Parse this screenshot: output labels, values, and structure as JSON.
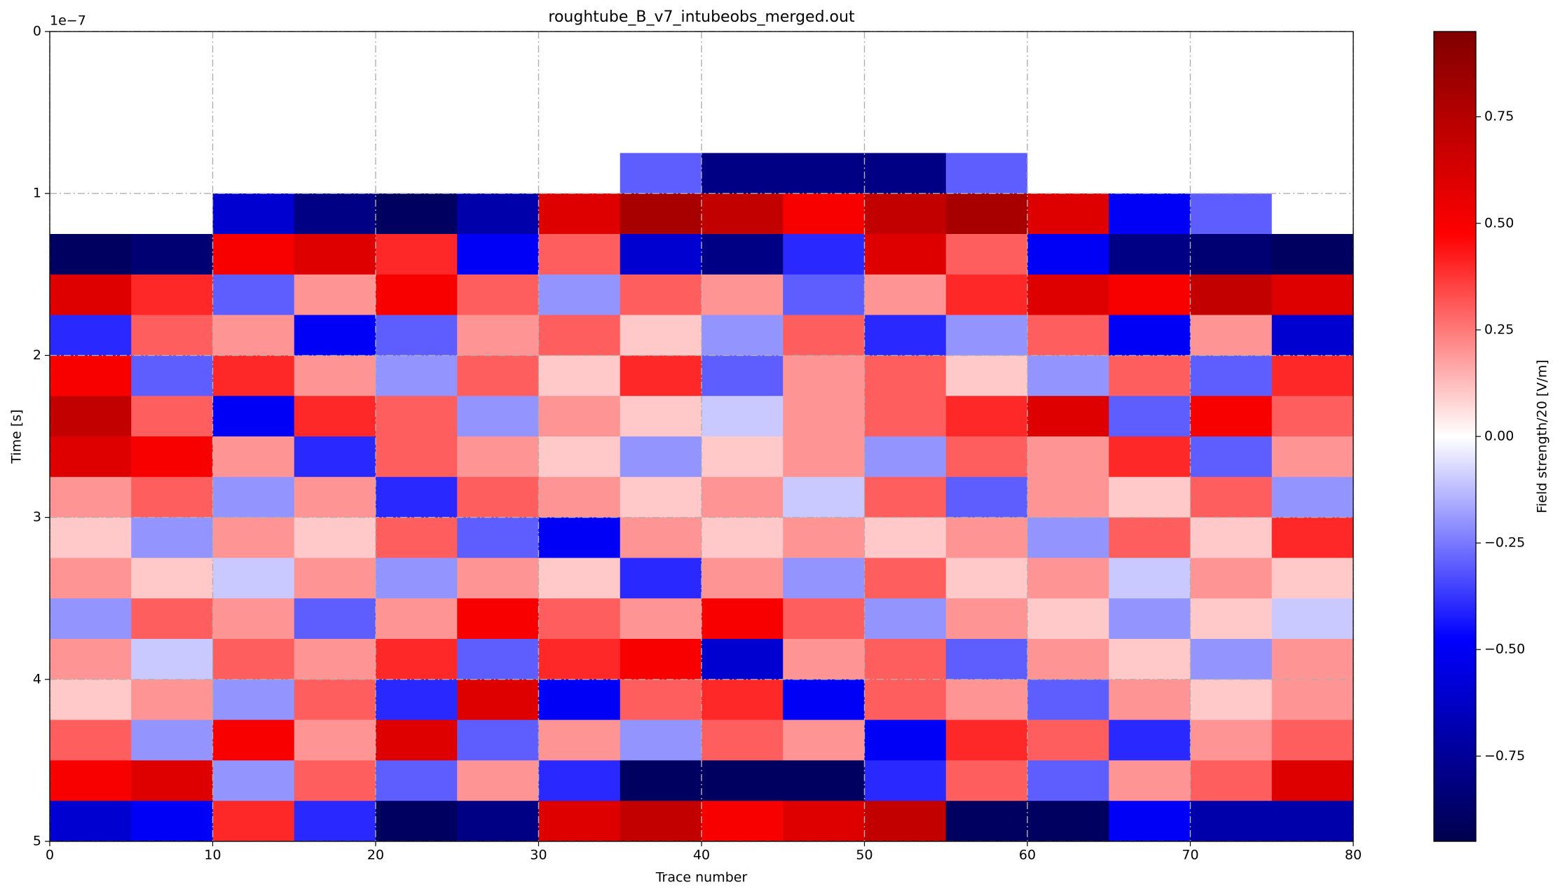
{
  "chart_data": {
    "type": "heatmap",
    "title": "roughtube_B_v7_intubeobs_merged.out",
    "x_label": "Trace number",
    "y_label": "Time [s]",
    "y_offset_label": "1e−7",
    "colorbar_label": "Field strength/20 [V/m]",
    "colormap": "seismic",
    "xlim": [
      0,
      80
    ],
    "ylim": [
      5,
      0
    ],
    "xticks": [
      0,
      10,
      20,
      30,
      40,
      50,
      60,
      70,
      80
    ],
    "yticks": [
      0,
      1,
      2,
      3,
      4,
      5
    ],
    "grid": true,
    "clim": [
      -0.95,
      0.95
    ],
    "cticks": [
      {
        "value": -0.75,
        "label": "−0.75"
      },
      {
        "value": -0.5,
        "label": "−0.50"
      },
      {
        "value": -0.25,
        "label": "−0.25"
      },
      {
        "value": 0,
        "label": "0.00"
      },
      {
        "value": 0.25,
        "label": "0.25"
      },
      {
        "value": 0.5,
        "label": "0.50"
      },
      {
        "value": 0.75,
        "label": "0.75"
      }
    ],
    "xbins": [
      0,
      5,
      10,
      15,
      20,
      25,
      30,
      35,
      40,
      45,
      50,
      55,
      60,
      65,
      70,
      75,
      80
    ],
    "ybins": [
      0,
      0.25,
      0.5,
      0.75,
      1,
      1.25,
      1.5,
      1.75,
      2,
      2.25,
      2.5,
      2.75,
      3,
      3.25,
      3.5,
      3.75,
      4,
      4.25,
      4.5,
      4.75,
      5
    ],
    "values": [
      [
        0,
        0,
        0,
        0,
        0,
        0,
        0,
        0,
        0,
        0,
        0,
        0,
        0,
        0,
        0,
        0
      ],
      [
        0,
        0,
        0,
        0,
        0,
        0,
        0,
        0,
        0,
        0,
        0,
        0,
        0,
        0,
        0,
        0
      ],
      [
        0,
        0,
        0,
        0,
        0,
        0,
        0,
        0,
        0,
        0,
        0,
        0,
        0,
        0,
        0,
        0
      ],
      [
        0,
        0,
        0,
        0,
        0,
        0,
        0,
        -0.3,
        -0.8,
        -0.8,
        -0.8,
        -0.3,
        0,
        0,
        0,
        0
      ],
      [
        0,
        0,
        -0.6,
        -0.8,
        -0.9,
        -0.7,
        0.6,
        0.8,
        0.7,
        0.5,
        0.7,
        0.8,
        0.6,
        -0.5,
        -0.3,
        0
      ],
      [
        -0.9,
        -0.85,
        0.5,
        0.6,
        0.4,
        -0.5,
        0.3,
        -0.6,
        -0.8,
        -0.4,
        0.6,
        0.3,
        -0.5,
        -0.8,
        -0.85,
        -0.9
      ],
      [
        0.6,
        0.4,
        -0.3,
        0.2,
        0.5,
        0.3,
        -0.2,
        0.3,
        0.2,
        -0.3,
        0.2,
        0.4,
        0.6,
        0.5,
        0.7,
        0.6
      ],
      [
        -0.4,
        0.3,
        0.2,
        -0.5,
        -0.3,
        0.2,
        0.3,
        0.1,
        -0.2,
        0.3,
        -0.4,
        -0.2,
        0.3,
        -0.5,
        0.2,
        -0.6
      ],
      [
        0.5,
        -0.3,
        0.4,
        0.2,
        -0.2,
        0.3,
        0.1,
        0.4,
        -0.3,
        0.2,
        0.3,
        0.1,
        -0.2,
        0.3,
        -0.3,
        0.4
      ],
      [
        0.7,
        0.3,
        -0.5,
        0.4,
        0.3,
        -0.2,
        0.2,
        0.1,
        -0.1,
        0.2,
        0.3,
        0.4,
        0.6,
        -0.3,
        0.5,
        0.3
      ],
      [
        0.6,
        0.5,
        0.2,
        -0.4,
        0.3,
        0.2,
        0.1,
        -0.2,
        0.1,
        0.2,
        -0.2,
        0.3,
        0.2,
        0.4,
        -0.3,
        0.2
      ],
      [
        0.2,
        0.3,
        -0.2,
        0.2,
        -0.4,
        0.3,
        0.2,
        0.1,
        0.2,
        -0.1,
        0.3,
        -0.3,
        0.2,
        0.1,
        0.3,
        -0.2
      ],
      [
        0.1,
        -0.2,
        0.2,
        0.1,
        0.3,
        -0.3,
        -0.5,
        0.2,
        0.1,
        0.2,
        0.1,
        0.2,
        -0.2,
        0.3,
        0.1,
        0.4
      ],
      [
        0.2,
        0.1,
        -0.1,
        0.2,
        -0.2,
        0.2,
        0.1,
        -0.4,
        0.2,
        -0.2,
        0.3,
        0.1,
        0.2,
        -0.1,
        0.2,
        0.1
      ],
      [
        -0.2,
        0.3,
        0.2,
        -0.3,
        0.2,
        0.5,
        0.3,
        0.2,
        0.5,
        0.3,
        -0.2,
        0.2,
        0.1,
        -0.2,
        0.1,
        -0.1
      ],
      [
        0.2,
        -0.1,
        0.3,
        0.2,
        0.4,
        -0.3,
        0.4,
        0.5,
        -0.6,
        0.2,
        0.3,
        -0.3,
        0.2,
        0.1,
        -0.2,
        0.2
      ],
      [
        0.1,
        0.2,
        -0.2,
        0.3,
        -0.4,
        0.6,
        -0.5,
        0.3,
        0.4,
        -0.5,
        0.3,
        0.2,
        -0.3,
        0.2,
        0.1,
        0.2
      ],
      [
        0.3,
        -0.2,
        0.5,
        0.2,
        0.6,
        -0.3,
        0.2,
        -0.2,
        0.3,
        0.2,
        -0.5,
        0.4,
        0.3,
        -0.4,
        0.2,
        0.3
      ],
      [
        0.5,
        0.6,
        -0.2,
        0.3,
        -0.3,
        0.2,
        -0.4,
        -0.9,
        -0.9,
        -0.9,
        -0.4,
        0.3,
        -0.3,
        0.2,
        0.3,
        0.6
      ],
      [
        -0.6,
        -0.5,
        0.4,
        -0.4,
        -0.9,
        -0.8,
        0.6,
        0.7,
        0.5,
        0.6,
        0.7,
        -0.9,
        -0.9,
        -0.5,
        -0.7,
        -0.7
      ]
    ]
  }
}
